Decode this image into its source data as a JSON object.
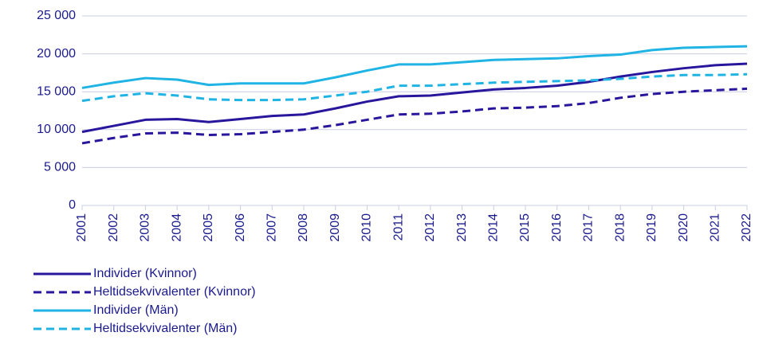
{
  "chart_data": {
    "type": "line",
    "categories": [
      "2001",
      "2002",
      "2003",
      "2004",
      "2005",
      "2006",
      "2007",
      "2008",
      "2009",
      "2010",
      "2011",
      "2012",
      "2013",
      "2014",
      "2015",
      "2016",
      "2017",
      "2018",
      "2019",
      "2020",
      "2021",
      "2022"
    ],
    "series": [
      {
        "name": "Individer (Kvinnor)",
        "color": "#28169c",
        "dashed": false,
        "values": [
          9700,
          10500,
          11300,
          11400,
          11000,
          11400,
          11800,
          12000,
          12800,
          13700,
          14400,
          14500,
          14900,
          15300,
          15500,
          15800,
          16300,
          17000,
          17600,
          18100,
          18500,
          18700
        ]
      },
      {
        "name": "Heltidsekvivalenter (Kvinnor)",
        "color": "#28169c",
        "dashed": true,
        "values": [
          8200,
          8900,
          9500,
          9600,
          9300,
          9400,
          9700,
          10000,
          10600,
          11300,
          12000,
          12100,
          12400,
          12800,
          12900,
          13100,
          13500,
          14200,
          14700,
          15000,
          15200,
          15400
        ]
      },
      {
        "name": "Individer (Män)",
        "color": "#1fb4e4",
        "dashed": false,
        "values": [
          15500,
          16200,
          16800,
          16600,
          15900,
          16100,
          16100,
          16100,
          16900,
          17800,
          18600,
          18600,
          18900,
          19200,
          19300,
          19400,
          19700,
          19900,
          20500,
          20800,
          20900,
          21000
        ]
      },
      {
        "name": "Heltidsekvivalenter (Män)",
        "color": "#1fb4e4",
        "dashed": true,
        "values": [
          13800,
          14400,
          14800,
          14500,
          14000,
          13900,
          13900,
          14000,
          14500,
          15000,
          15800,
          15800,
          16000,
          16200,
          16300,
          16400,
          16500,
          16700,
          17000,
          17200,
          17200,
          17300
        ]
      }
    ],
    "ylim": [
      0,
      25000
    ],
    "yticks": [
      0,
      {
        "value": 5000,
        "label": "5 000"
      },
      {
        "value": 10000,
        "label": "10 000"
      },
      {
        "value": 15000,
        "label": "15 000"
      },
      {
        "value": 20000,
        "label": "20 000"
      },
      {
        "value": 25000,
        "label": "25 000"
      }
    ],
    "grid": true,
    "legend": "bottom"
  }
}
